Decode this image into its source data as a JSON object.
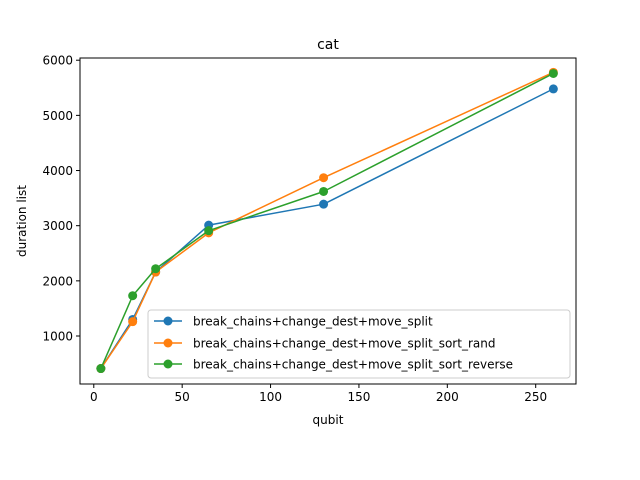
{
  "chart_data": {
    "type": "line",
    "title": "cat",
    "xlabel": "qubit",
    "ylabel": "duration list",
    "xlim": [
      -7.8,
      272.8
    ],
    "ylim": [
      130,
      6040
    ],
    "xticks": [
      0,
      50,
      100,
      150,
      200,
      250
    ],
    "yticks": [
      1000,
      2000,
      3000,
      4000,
      5000,
      6000
    ],
    "grid": false,
    "legend_position": "lower-right",
    "series": [
      {
        "name": "break_chains+change_dest+move_split",
        "color": "#1f77b4",
        "x": [
          4,
          22,
          35,
          65,
          130,
          260
        ],
        "y": [
          410,
          1300,
          2160,
          3010,
          3390,
          5480
        ]
      },
      {
        "name": "break_chains+change_dest+move_split_sort_rand",
        "color": "#ff7f0e",
        "x": [
          4,
          22,
          35,
          65,
          130,
          260
        ],
        "y": [
          410,
          1260,
          2160,
          2870,
          3870,
          5780
        ]
      },
      {
        "name": "break_chains+change_dest+move_split_sort_reverse",
        "color": "#2ca02c",
        "x": [
          4,
          22,
          35,
          65,
          130,
          260
        ],
        "y": [
          410,
          1730,
          2220,
          2910,
          3620,
          5760
        ]
      }
    ]
  }
}
